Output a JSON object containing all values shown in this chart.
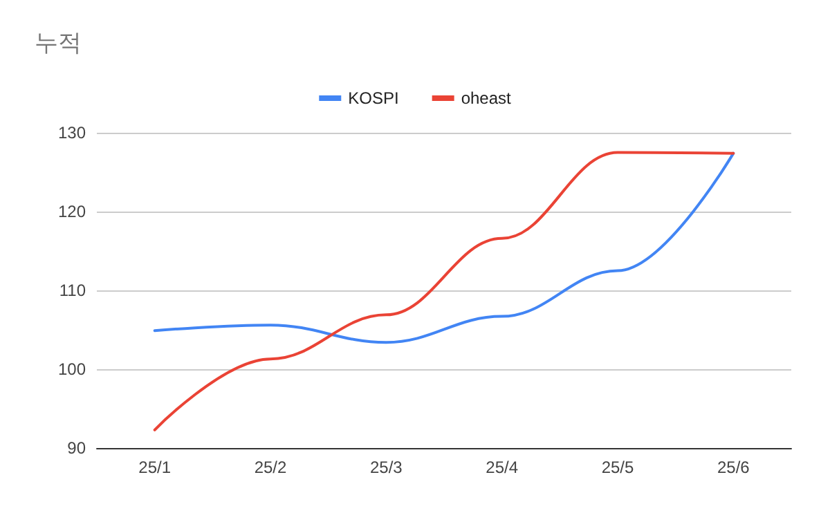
{
  "chart_data": {
    "type": "line",
    "title": "누적",
    "categories": [
      "25/1",
      "25/2",
      "25/3",
      "25/4",
      "25/5",
      "25/6"
    ],
    "series": [
      {
        "name": "KOSPI",
        "color": "#4285f4",
        "values": [
          104.9,
          105.6,
          103.4,
          106.7,
          112.5,
          127.4
        ]
      },
      {
        "name": "oheast",
        "color": "#ea4335",
        "values": [
          92.3,
          101.3,
          106.9,
          116.6,
          127.5,
          127.4
        ]
      }
    ],
    "ylim": [
      90,
      130
    ],
    "yticks": [
      90,
      100,
      110,
      120,
      130
    ],
    "grid": "y",
    "legend": "top",
    "marker": "none",
    "line_style": "solid"
  }
}
